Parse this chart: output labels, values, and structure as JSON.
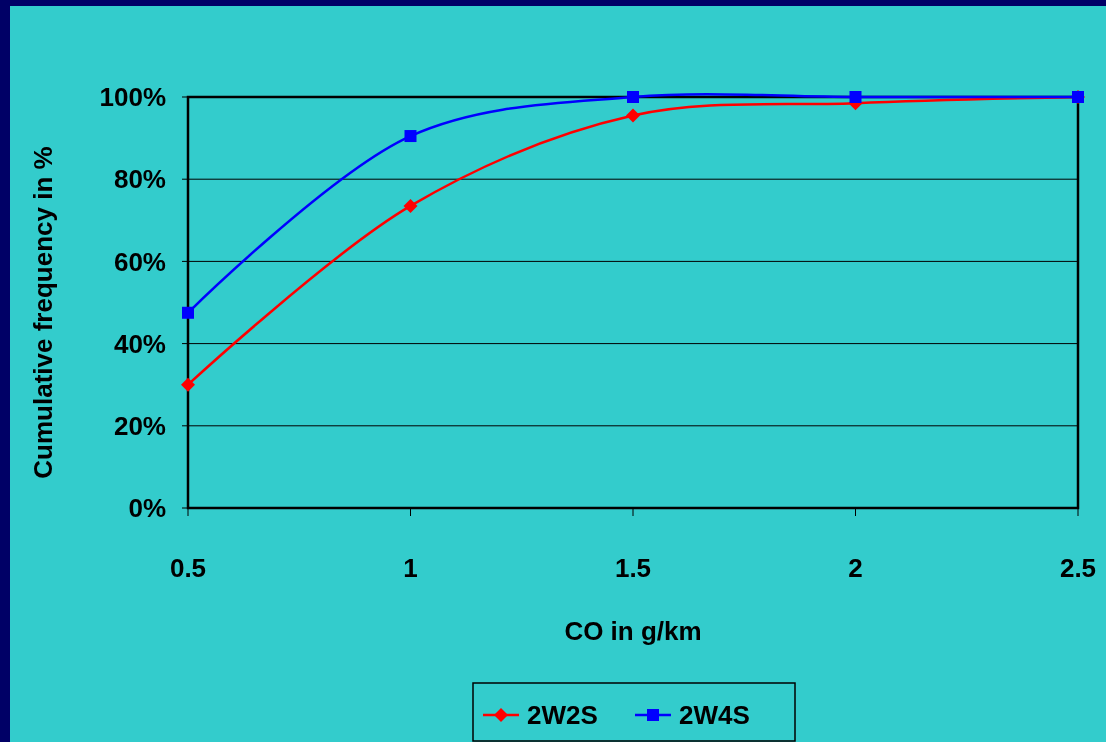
{
  "chart_data": {
    "type": "line",
    "xlabel": "CO in g/km",
    "ylabel": "Cumulative frequency in %",
    "x": [
      0.5,
      1,
      1.5,
      2,
      2.5
    ],
    "series": [
      {
        "name": "2W2S",
        "color": "#ff0000",
        "marker": "diamond",
        "values": [
          30,
          73.5,
          95.5,
          98.5,
          100
        ]
      },
      {
        "name": "2W4S",
        "color": "#0000ff",
        "marker": "square",
        "values": [
          47.5,
          90.5,
          100,
          100,
          100
        ]
      }
    ],
    "xlim": [
      0.5,
      2.5
    ],
    "xticks": [
      0.5,
      1,
      1.5,
      2,
      2.5
    ],
    "ylim": [
      0,
      100
    ],
    "yticks": [
      {
        "value": 0,
        "label": "0%"
      },
      {
        "value": 20,
        "label": "20%"
      },
      {
        "value": 40,
        "label": "40%"
      },
      {
        "value": 60,
        "label": "60%"
      },
      {
        "value": 80,
        "label": "80%"
      },
      {
        "value": 100,
        "label": "100%"
      }
    ],
    "grid": "y",
    "legend": "bottom"
  }
}
